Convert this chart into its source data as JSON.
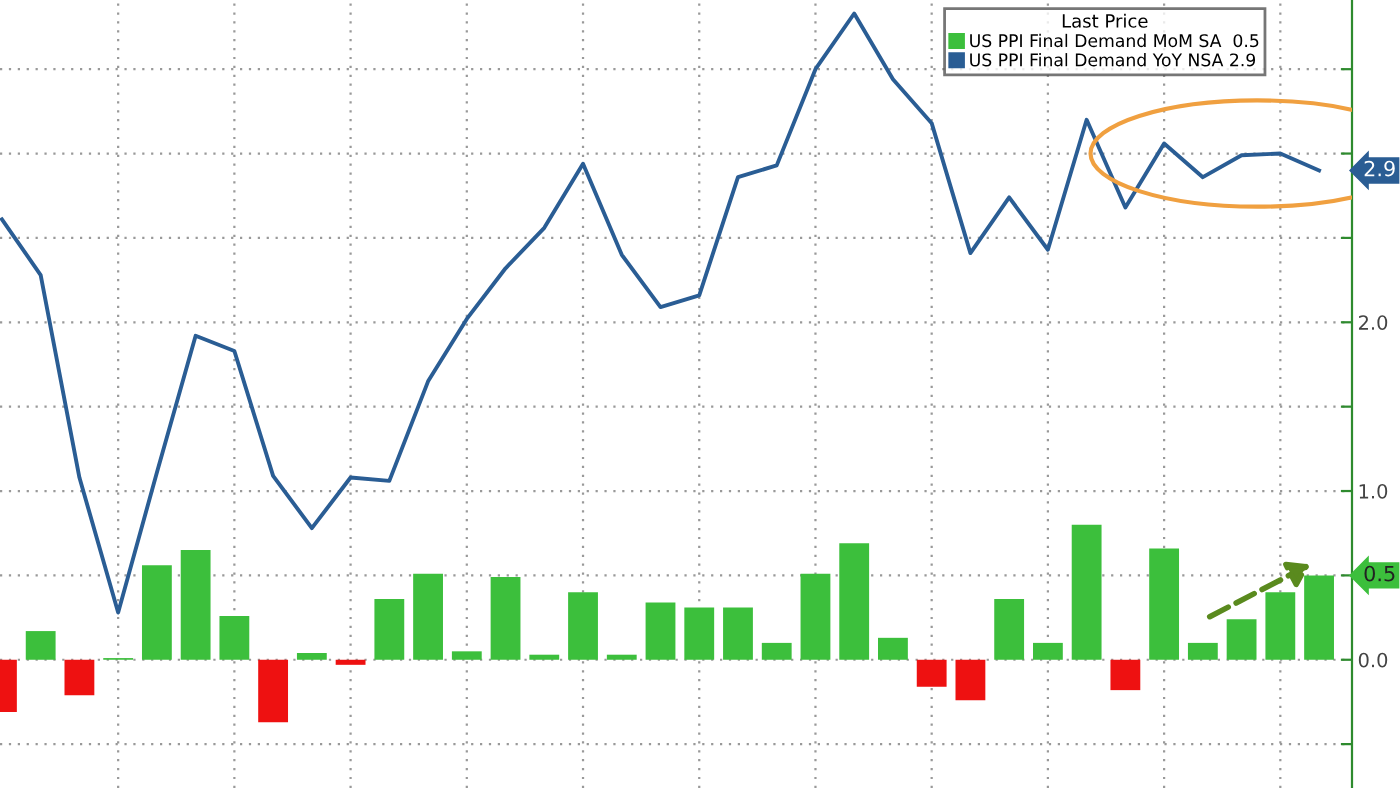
{
  "chart_data": {
    "type": "bar",
    "legend_title": "Last Price",
    "categories": [
      null,
      null,
      null,
      null,
      null,
      null,
      null,
      null,
      null,
      null,
      null,
      null,
      null,
      null,
      null,
      null,
      null,
      null,
      null,
      null,
      null,
      null,
      null,
      null,
      null,
      null,
      null,
      null,
      null,
      null,
      null,
      null,
      null,
      null,
      null
    ],
    "series": [
      {
        "name": "US PPI Final Demand MoM SA  0.5",
        "color": "#3cbf3c",
        "colors": [
          "#ee1111",
          "#3cbf3c",
          "#ee1111",
          "#3cbf3c",
          "#3cbf3c",
          "#3cbf3c",
          "#3cbf3c",
          "#ee1111",
          "#3cbf3c",
          "#ee1111",
          "#3cbf3c",
          "#3cbf3c",
          "#3cbf3c",
          "#3cbf3c",
          "#3cbf3c",
          "#3cbf3c",
          "#3cbf3c",
          "#3cbf3c",
          "#3cbf3c",
          "#3cbf3c",
          "#3cbf3c",
          "#3cbf3c",
          "#3cbf3c",
          "#3cbf3c",
          "#ee1111",
          "#ee1111",
          "#3cbf3c",
          "#3cbf3c",
          "#3cbf3c",
          "#ee1111",
          "#3cbf3c",
          "#3cbf3c",
          "#3cbf3c",
          "#3cbf3c",
          "#3cbf3c"
        ],
        "values": [
          -0.31,
          0.17,
          -0.21,
          0.01,
          0.56,
          0.65,
          0.26,
          -0.37,
          0.04,
          -0.03,
          0.36,
          0.51,
          0.05,
          0.49,
          0.03,
          0.4,
          0.03,
          0.34,
          0.31,
          0.31,
          0.1,
          0.51,
          0.69,
          0.13,
          -0.16,
          -0.24,
          0.36,
          0.1,
          0.8,
          -0.18,
          0.66,
          0.1,
          0.24,
          0.4,
          0.5
        ]
      },
      {
        "name": "US PPI Final Demand YoY NSA 2.9",
        "type": "line",
        "color": "#2a5d94",
        "values": [
          2.61,
          2.28,
          1.08,
          0.28,
          1.11,
          1.92,
          1.83,
          1.09,
          0.78,
          1.08,
          1.06,
          1.65,
          2.02,
          2.32,
          2.56,
          2.94,
          2.4,
          2.09,
          2.16,
          2.86,
          2.93,
          3.5,
          3.83,
          3.44,
          3.18,
          2.41,
          2.74,
          2.43,
          3.2,
          2.68,
          3.06,
          2.86,
          2.99,
          3.0,
          2.9
        ]
      }
    ],
    "ylim": [
      -0.76,
      3.91
    ],
    "yticks": [
      {
        "value": -0.5,
        "label": null
      },
      {
        "value": 0,
        "label": "0.0"
      },
      {
        "value": 0.5,
        "label": null
      },
      {
        "value": 1,
        "label": "1.0"
      },
      {
        "value": 1.5,
        "label": null
      },
      {
        "value": 2,
        "label": "2.0"
      },
      {
        "value": 2.5,
        "label": null
      },
      {
        "value": 3,
        "label": null
      },
      {
        "value": 3.5,
        "label": null
      }
    ],
    "annotations": [
      "0.5",
      "2.9"
    ],
    "grid": true,
    "legend": "top right"
  }
}
